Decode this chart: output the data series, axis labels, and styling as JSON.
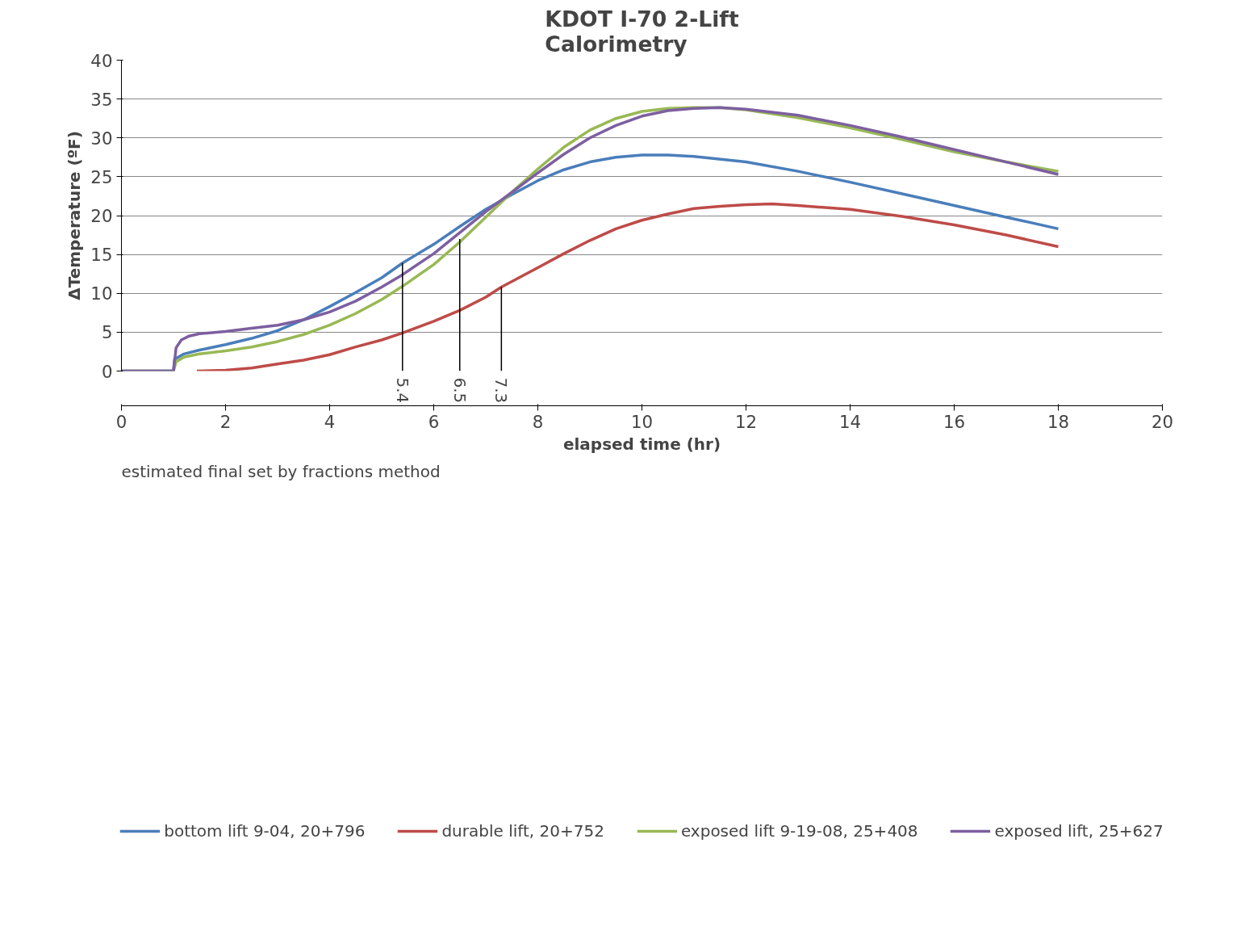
{
  "chart_data": {
    "type": "line",
    "title": "KDOT I-70 2-Lift\nCalorimetry",
    "xlabel": "elapsed time (hr)",
    "ylabel": "ΔTemperature (ºF)",
    "xlim": [
      0,
      20
    ],
    "xticks": [
      0,
      2,
      4,
      6,
      8,
      10,
      12,
      14,
      16,
      18,
      20
    ],
    "ylim": [
      0,
      40
    ],
    "yticks": [
      0,
      5,
      10,
      15,
      20,
      25,
      30,
      35,
      40
    ],
    "grid": "y",
    "legend": "bottom",
    "marker": "none",
    "line_style": "solid",
    "series": [
      {
        "name": "bottom lift 9-04, 20+796",
        "color": "#4a7ebb",
        "x": [
          0,
          1,
          1.02,
          1.2,
          1.5,
          2,
          2.5,
          3,
          3.5,
          4,
          4.5,
          5,
          5.4,
          6,
          6.5,
          7,
          7.5,
          8,
          8.5,
          9,
          9.5,
          10,
          10.5,
          11,
          12,
          13,
          14,
          15,
          16,
          17,
          18
        ],
        "values": [
          0,
          0,
          1.5,
          2.2,
          2.7,
          3.4,
          4.2,
          5.2,
          6.6,
          8.3,
          10.1,
          12.0,
          13.9,
          16.3,
          18.6,
          20.8,
          22.7,
          24.5,
          25.9,
          26.9,
          27.5,
          27.8,
          27.8,
          27.6,
          26.9,
          25.7,
          24.3,
          22.8,
          21.3,
          19.8,
          18.3
        ]
      },
      {
        "name": "durable lift, 20+752",
        "color": "#be4b48",
        "x": [
          1.45,
          2,
          2.5,
          3,
          3.5,
          4,
          4.5,
          5,
          5.4,
          6,
          6.5,
          7,
          7.3,
          8,
          8.5,
          9,
          9.5,
          10,
          10.5,
          11,
          11.5,
          12,
          12.5,
          13,
          14,
          15,
          16,
          17,
          18
        ],
        "values": [
          0,
          0.1,
          0.4,
          0.9,
          1.4,
          2.1,
          3.1,
          4.0,
          4.9,
          6.4,
          7.8,
          9.5,
          10.8,
          13.3,
          15.1,
          16.8,
          18.3,
          19.4,
          20.2,
          20.9,
          21.2,
          21.4,
          21.5,
          21.3,
          20.8,
          19.9,
          18.8,
          17.5,
          16.0
        ]
      },
      {
        "name": "exposed lift 9-19-08, 25+408",
        "color": "#98b954",
        "x": [
          0,
          1,
          1.05,
          1.2,
          1.5,
          2,
          2.5,
          3,
          3.5,
          4,
          4.5,
          5,
          5.4,
          6,
          6.5,
          7,
          7.5,
          8,
          8.5,
          9,
          9.5,
          10,
          10.5,
          11,
          11.5,
          12,
          13,
          14,
          15,
          16,
          17,
          18
        ],
        "values": [
          0,
          0,
          1.2,
          1.8,
          2.2,
          2.6,
          3.1,
          3.8,
          4.7,
          5.9,
          7.4,
          9.2,
          10.9,
          13.7,
          16.6,
          19.8,
          23.0,
          26.0,
          28.8,
          31.0,
          32.5,
          33.4,
          33.8,
          33.9,
          33.9,
          33.6,
          32.6,
          31.3,
          29.8,
          28.2,
          26.9,
          25.7
        ]
      },
      {
        "name": "exposed lift, 25+627",
        "color": "#7d5fa0",
        "x": [
          0,
          1,
          1.05,
          1.15,
          1.3,
          1.5,
          2,
          2.5,
          3,
          3.5,
          4,
          4.5,
          5,
          5.4,
          6,
          6.5,
          7,
          7.5,
          8,
          8.5,
          9,
          9.5,
          10,
          10.5,
          11,
          11.5,
          12,
          13,
          14,
          15,
          16,
          17,
          18
        ],
        "values": [
          0,
          0,
          3.0,
          4.0,
          4.5,
          4.8,
          5.1,
          5.5,
          5.9,
          6.6,
          7.6,
          9.0,
          10.8,
          12.4,
          15.1,
          17.8,
          20.5,
          23.0,
          25.5,
          27.9,
          30.0,
          31.6,
          32.8,
          33.5,
          33.8,
          33.9,
          33.7,
          32.9,
          31.6,
          30.1,
          28.5,
          26.9,
          25.3
        ]
      },
      {
        "type": "line",
        "color": "#000000",
        "x": [
          5.4,
          5.4
        ],
        "values": [
          0,
          13.9
        ]
      },
      {
        "type": "line",
        "color": "#000000",
        "x": [
          6.5,
          6.5
        ],
        "values": [
          0,
          17.0
        ]
      },
      {
        "type": "line",
        "color": "#000000",
        "x": [
          7.3,
          7.3
        ],
        "values": [
          0,
          10.8
        ]
      }
    ],
    "annotations": [
      {
        "text": "5.4",
        "x": 5.4,
        "y": 0
      },
      {
        "text": "6.5",
        "x": 6.5,
        "y": 0
      },
      {
        "text": "7.3",
        "x": 7.3,
        "y": 0
      },
      "estimated final set by fractions method"
    ]
  }
}
